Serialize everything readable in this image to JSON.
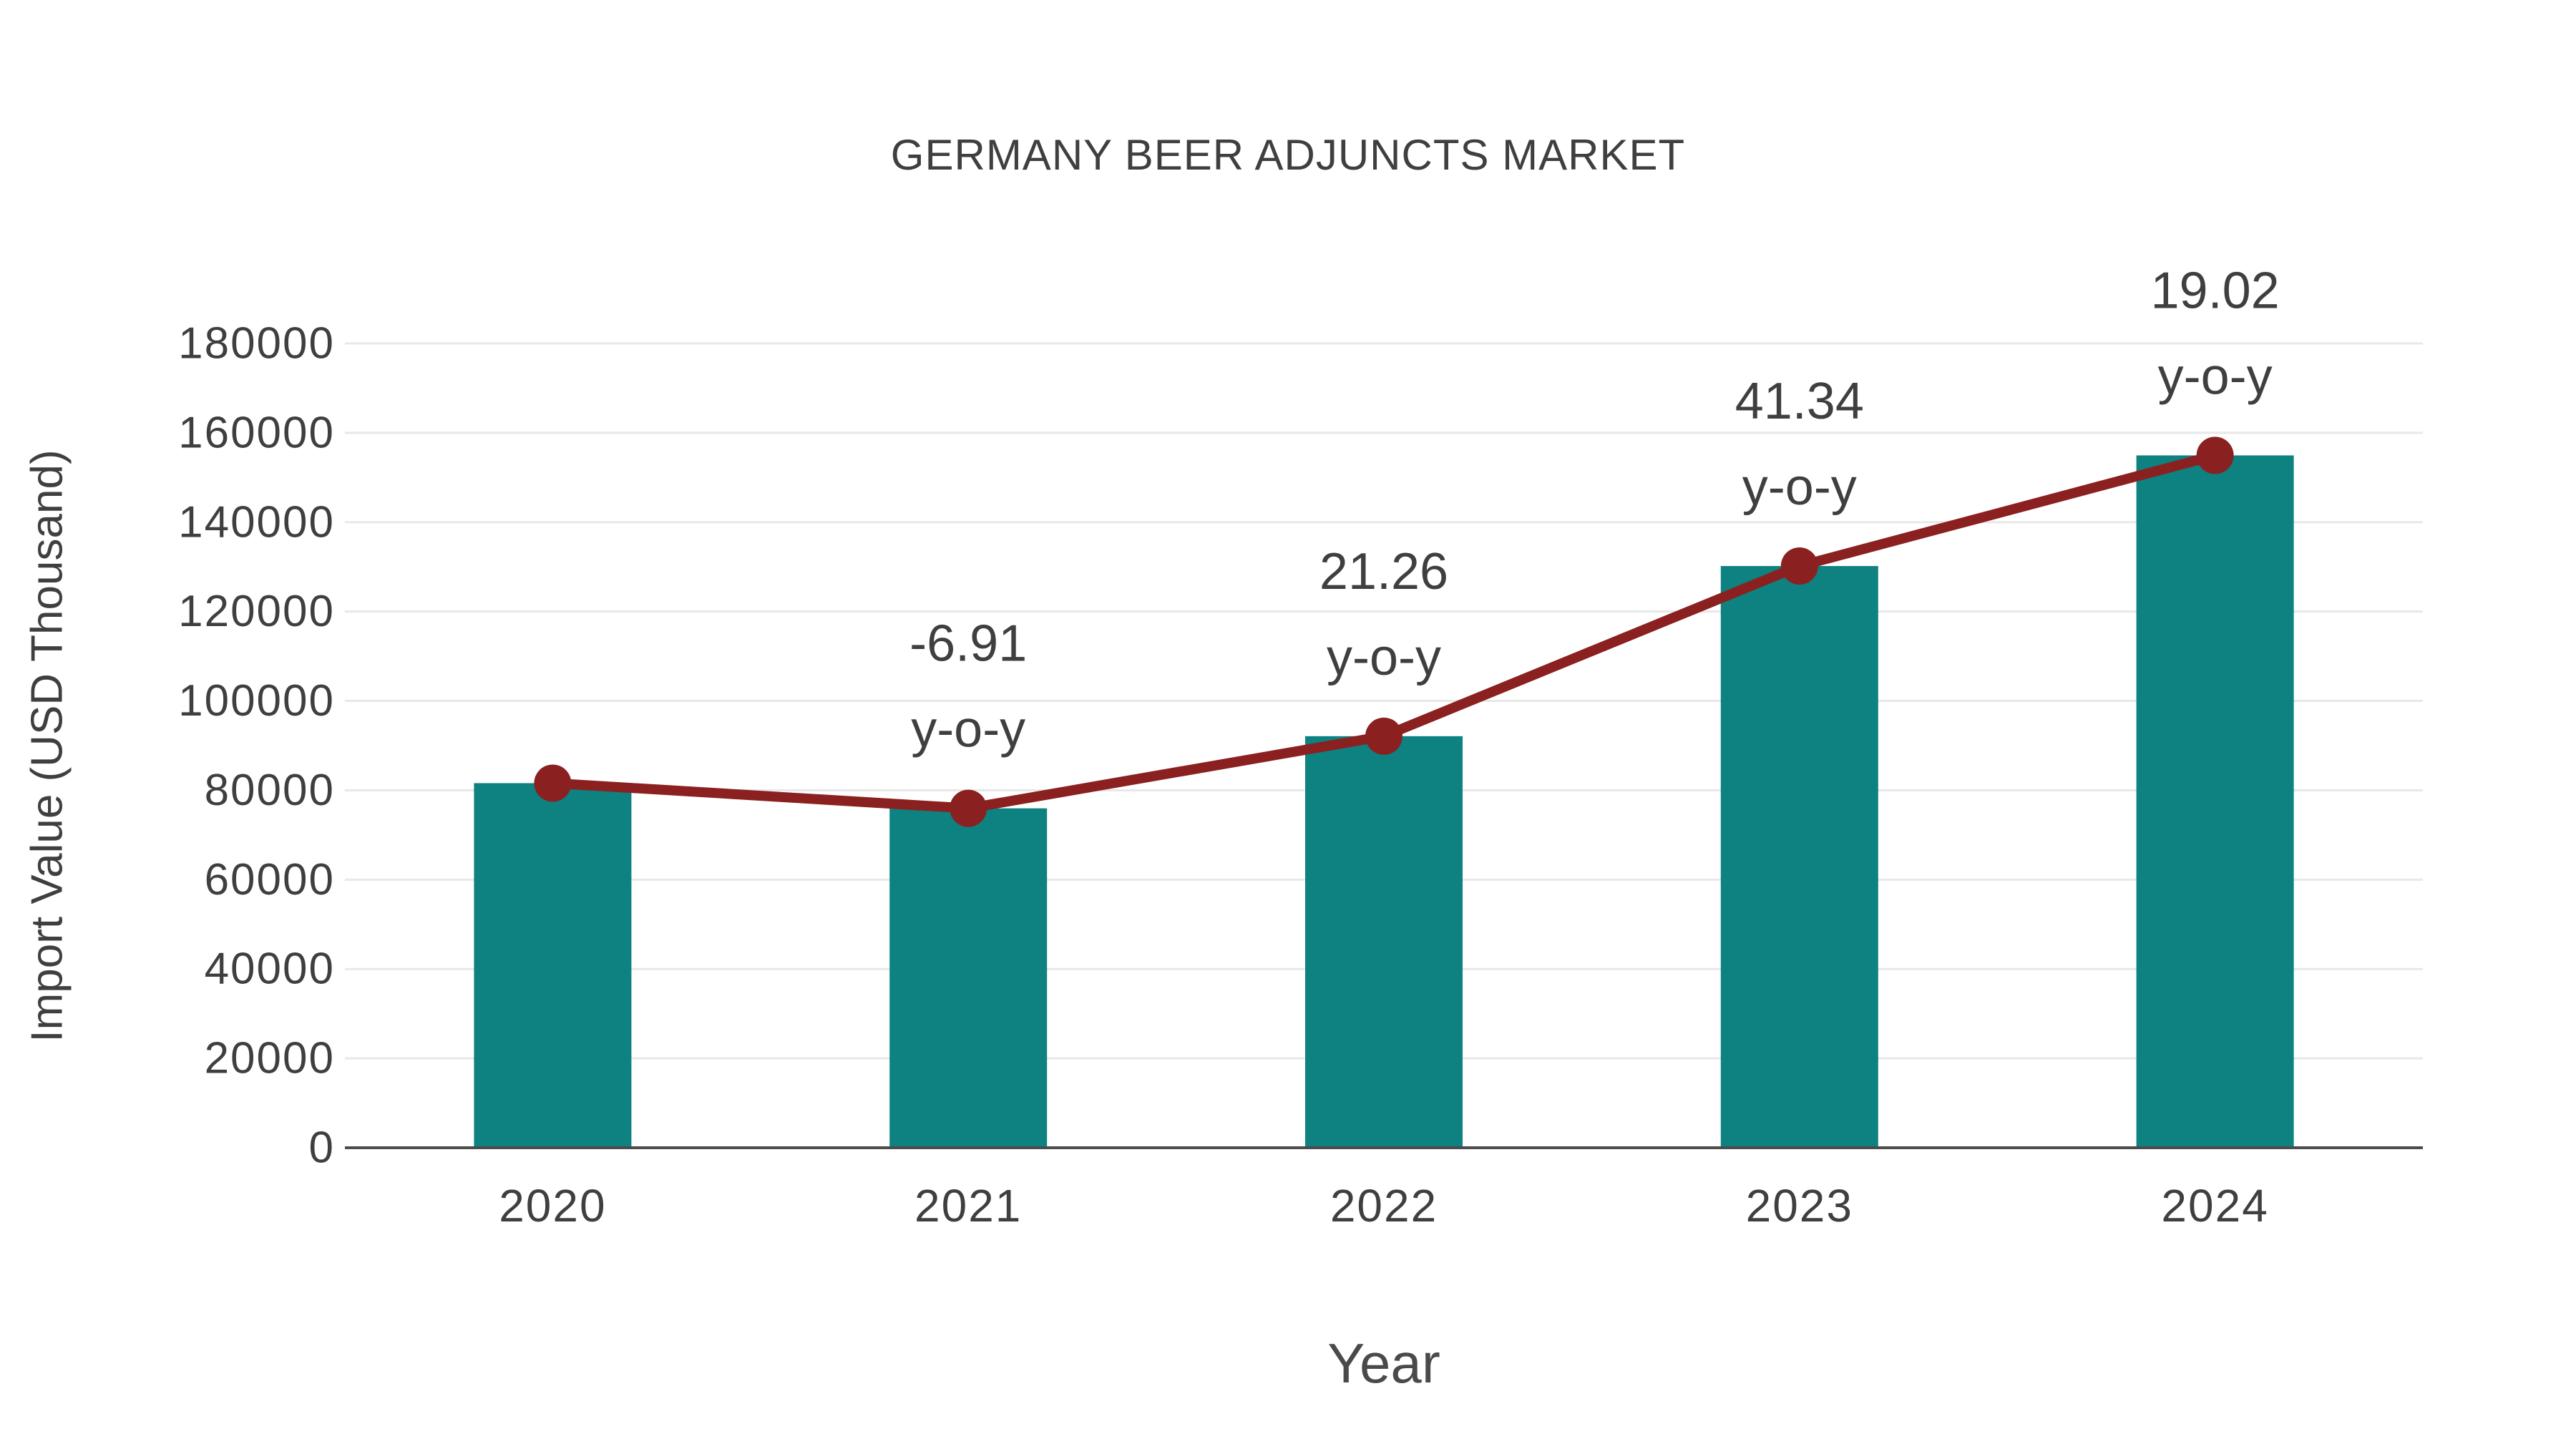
{
  "chart_data": {
    "type": "bar",
    "combo": "bar+line",
    "title": "GERMANY BEER ADJUNCTS MARKET",
    "xlabel": "Year",
    "ylabel": "Import Value (USD Thousand)",
    "categories": [
      "2020",
      "2021",
      "2022",
      "2023",
      "2024"
    ],
    "series": [
      {
        "name": "Import Value bars",
        "type": "bar",
        "values": [
          81600,
          75960,
          92110,
          130190,
          154950
        ]
      },
      {
        "name": "Import Value trend line",
        "type": "line",
        "values": [
          81600,
          75960,
          92110,
          130190,
          154950
        ]
      }
    ],
    "yoy_annotations": [
      {
        "category": "2021",
        "label": "-6.91",
        "suffix": "y-o-y"
      },
      {
        "category": "2022",
        "label": "21.26",
        "suffix": "y-o-y"
      },
      {
        "category": "2023",
        "label": "41.34",
        "suffix": "y-o-y"
      },
      {
        "category": "2024",
        "label": "19.02",
        "suffix": "y-o-y"
      }
    ],
    "ylim": [
      0,
      180000
    ],
    "ytick_step": 20000,
    "ytick_labels": [
      "0",
      "20000",
      "40000",
      "60000",
      "80000",
      "100000",
      "120000",
      "140000",
      "160000",
      "180000"
    ],
    "grid": true,
    "legend_position": "none"
  },
  "colors": {
    "bar_fill": "#0e8181",
    "line_stroke": "#8b2020",
    "marker_fill": "#8b2020",
    "grid_line": "#e8e8e8",
    "axis_line": "#4c4c4c",
    "text": "#3f3f3f",
    "background": "#ffffff"
  }
}
